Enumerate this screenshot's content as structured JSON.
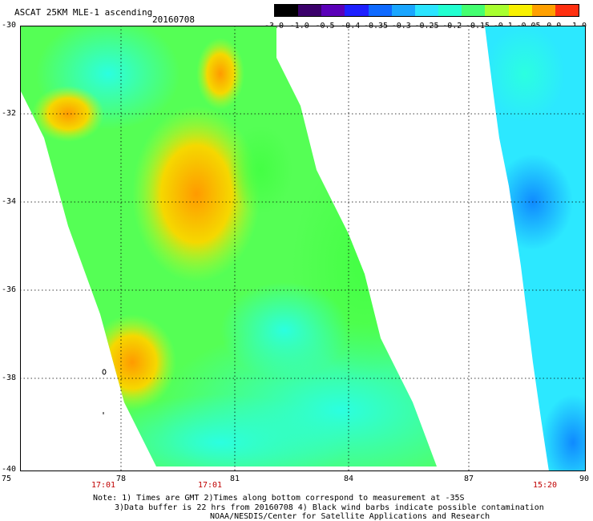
{
  "header": {
    "title": "ASCAT 25KM MLE-1 ascending",
    "date": "20160708"
  },
  "colorbar": {
    "labels": [
      "-3.0",
      "-1.0",
      "-0.5",
      "-0.4",
      "-0.35",
      "-0.3",
      "-0.25",
      "-0.2",
      "-0.15",
      "-0.1",
      "-0.05",
      "0.0",
      "1.0"
    ],
    "colors": [
      "#000000",
      "#3a006a",
      "#5a00b8",
      "#1e20ff",
      "#0f6aff",
      "#1aa6ff",
      "#2be4ff",
      "#22ffd0",
      "#44ff70",
      "#a8ff30",
      "#f8f000",
      "#ffa000",
      "#ff3010"
    ]
  },
  "axes": {
    "y_ticks": [
      "-30",
      "-32",
      "-34",
      "-36",
      "-38",
      "-40"
    ],
    "x_ticks": [
      "75",
      "78",
      "81",
      "84",
      "87",
      "90"
    ]
  },
  "pass_times": [
    "17:01",
    "17:01",
    "15:20"
  ],
  "notes": [
    "Note: 1) Times are GMT 2)Times along bottom correspond to measurement at -35S",
    "3)Data buffer is 22 hrs from 20160708 4) Black wind barbs indicate possible contamination",
    "NOAA/NESDIS/Center for Satellite Applications and Research"
  ]
}
